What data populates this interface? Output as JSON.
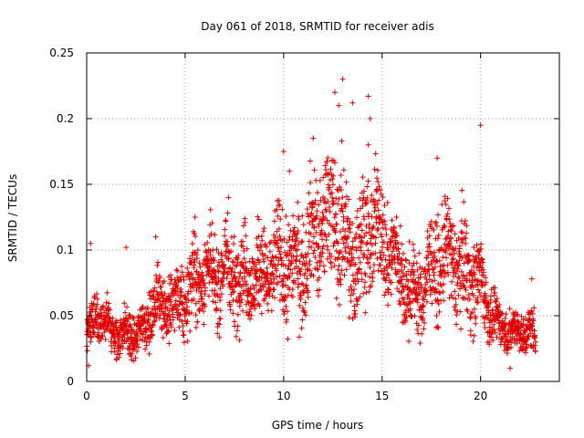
{
  "chart_data": {
    "type": "scatter",
    "title": "Day 061 of 2018, SRMTID for receiver adis",
    "xlabel": "GPS time / hours",
    "ylabel": "SRMTID / TECUs",
    "xlim": [
      0,
      24
    ],
    "ylim": [
      0,
      0.25
    ],
    "xticks": [
      0,
      5,
      10,
      15,
      20
    ],
    "xtick_labels": [
      "0",
      "5",
      "10",
      "15",
      "20"
    ],
    "yticks": [
      0,
      0.05,
      0.1,
      0.15,
      0.2,
      0.25
    ],
    "ytick_labels": [
      "0",
      "0.05",
      "0.1",
      "0.15",
      "0.2",
      "0.25"
    ],
    "grid": true,
    "marker": "+",
    "marker_color": "#e00000",
    "series": [
      {
        "name": "SRMTID",
        "trend": {
          "x": [
            0,
            0.5,
            1,
            1.5,
            2,
            2.5,
            3,
            3.5,
            4,
            4.5,
            5,
            5.5,
            6,
            6.5,
            7,
            7.5,
            8,
            8.5,
            9,
            9.5,
            10,
            10.5,
            11,
            11.5,
            12,
            12.5,
            13,
            13.5,
            14,
            14.5,
            15,
            15.5,
            16,
            16.5,
            17,
            17.5,
            18,
            18.5,
            19,
            19.5,
            20,
            20.5,
            21,
            21.5,
            22,
            22.5,
            22.8
          ],
          "y": [
            0.035,
            0.045,
            0.042,
            0.038,
            0.04,
            0.035,
            0.04,
            0.055,
            0.06,
            0.06,
            0.07,
            0.075,
            0.08,
            0.07,
            0.085,
            0.09,
            0.085,
            0.08,
            0.075,
            0.08,
            0.09,
            0.095,
            0.1,
            0.11,
            0.11,
            0.12,
            0.11,
            0.1,
            0.11,
            0.12,
            0.1,
            0.09,
            0.08,
            0.07,
            0.075,
            0.085,
            0.085,
            0.09,
            0.085,
            0.09,
            0.08,
            0.05,
            0.04,
            0.035,
            0.04,
            0.04,
            0.038
          ],
          "spread": [
            0.01,
            0.012,
            0.012,
            0.011,
            0.011,
            0.011,
            0.012,
            0.015,
            0.016,
            0.016,
            0.018,
            0.02,
            0.02,
            0.02,
            0.022,
            0.022,
            0.022,
            0.022,
            0.022,
            0.024,
            0.026,
            0.026,
            0.026,
            0.03,
            0.032,
            0.035,
            0.032,
            0.028,
            0.03,
            0.03,
            0.026,
            0.024,
            0.022,
            0.02,
            0.02,
            0.022,
            0.024,
            0.024,
            0.024,
            0.024,
            0.02,
            0.012,
            0.01,
            0.01,
            0.01,
            0.011,
            0.011
          ]
        },
        "point_count": 2600,
        "x_range": [
          0,
          22.8
        ]
      }
    ],
    "notable_points": [
      {
        "x": 13.0,
        "y": 0.23
      },
      {
        "x": 12.6,
        "y": 0.22
      },
      {
        "x": 14.3,
        "y": 0.217
      },
      {
        "x": 12.8,
        "y": 0.21
      },
      {
        "x": 13.5,
        "y": 0.212
      },
      {
        "x": 14.4,
        "y": 0.2
      },
      {
        "x": 20.0,
        "y": 0.195
      },
      {
        "x": 11.5,
        "y": 0.185
      },
      {
        "x": 14.3,
        "y": 0.18
      },
      {
        "x": 10.0,
        "y": 0.175
      },
      {
        "x": 17.8,
        "y": 0.17
      },
      {
        "x": 10.3,
        "y": 0.16
      },
      {
        "x": 7.2,
        "y": 0.14
      },
      {
        "x": 5.5,
        "y": 0.125
      },
      {
        "x": 3.5,
        "y": 0.11
      },
      {
        "x": 0.2,
        "y": 0.105
      },
      {
        "x": 2.0,
        "y": 0.102
      },
      {
        "x": 22.6,
        "y": 0.078
      },
      {
        "x": 21.5,
        "y": 0.01
      },
      {
        "x": 0.1,
        "y": 0.012
      }
    ]
  }
}
